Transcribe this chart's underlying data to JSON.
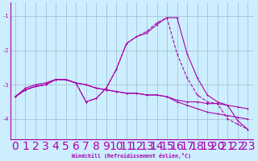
{
  "xlabel": "Windchill (Refroidissement éolien,°C)",
  "x": [
    0,
    1,
    2,
    3,
    4,
    5,
    6,
    7,
    8,
    9,
    10,
    11,
    12,
    13,
    14,
    15,
    16,
    17,
    18,
    19,
    20,
    21,
    22,
    23
  ],
  "line_color": "#aa00aa",
  "bg_color": "#cceeff",
  "grid_color": "#99bbcc",
  "ylim": [
    -4.6,
    -0.6
  ],
  "yticks": [
    -4,
    -3,
    -2,
    -1
  ],
  "curve1": [
    -3.35,
    -3.15,
    -3.05,
    -3.0,
    -2.85,
    -2.85,
    -2.95,
    -3.5,
    -3.4,
    -3.1,
    -2.55,
    -1.8,
    -1.6,
    -1.45,
    -1.2,
    -1.05,
    -2.1,
    -2.8,
    -3.3,
    -3.5,
    -3.55,
    -4.0,
    -4.15,
    -4.3
  ],
  "curve2": [
    -3.35,
    -3.15,
    -3.05,
    -3.0,
    -2.85,
    -2.85,
    -2.95,
    -3.5,
    -3.4,
    -3.1,
    -2.55,
    -1.8,
    -1.6,
    -1.5,
    -1.25,
    -1.05,
    -1.05,
    -2.1,
    -2.8,
    -3.3,
    -3.5,
    -3.6,
    -4.05,
    -4.3
  ],
  "curve3": [
    -3.35,
    -3.1,
    -3.0,
    -2.95,
    -2.85,
    -2.85,
    -2.95,
    -3.0,
    -3.1,
    -3.15,
    -3.2,
    -3.25,
    -3.25,
    -3.3,
    -3.3,
    -3.35,
    -3.45,
    -3.5,
    -3.5,
    -3.55,
    -3.55,
    -3.6,
    -3.65,
    -3.7
  ],
  "curve4": [
    -3.35,
    -3.15,
    -3.05,
    -3.0,
    -2.85,
    -2.85,
    -2.95,
    -3.0,
    -3.1,
    -3.15,
    -3.2,
    -3.25,
    -3.25,
    -3.3,
    -3.3,
    -3.35,
    -3.5,
    -3.6,
    -3.7,
    -3.8,
    -3.85,
    -3.9,
    -3.95,
    -4.0
  ]
}
